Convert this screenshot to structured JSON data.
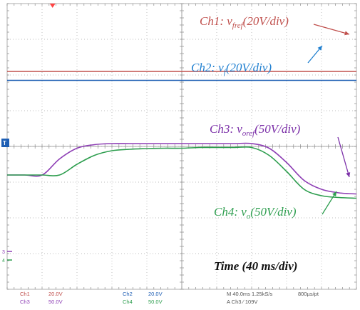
{
  "chart_data": {
    "type": "line",
    "screen": {
      "h_divisions": 10,
      "v_divisions": 8,
      "minor_ticks_per_div": 5,
      "grid": true,
      "grid_style": "dotted"
    },
    "x": [
      0,
      0.5,
      1,
      1.5,
      2,
      2.5,
      3,
      3.5,
      4,
      4.5,
      5,
      5.5,
      6,
      6.5,
      7,
      7.5,
      8,
      8.5,
      9,
      9.5,
      10
    ],
    "series": [
      {
        "channel": "Ch1",
        "color": "#c0504d",
        "values": [
          6.1,
          6.1,
          6.1,
          6.1,
          6.1,
          6.1,
          6.1,
          6.1,
          6.1,
          6.1,
          6.1,
          6.1,
          6.1,
          6.1,
          6.1,
          6.1,
          6.1,
          6.1,
          6.1,
          6.1,
          6.1
        ]
      },
      {
        "channel": "Ch2",
        "color": "#1f5fb4",
        "values": [
          5.85,
          5.85,
          5.85,
          5.85,
          5.85,
          5.85,
          5.85,
          5.85,
          5.85,
          5.85,
          5.85,
          5.85,
          5.85,
          5.85,
          5.85,
          5.85,
          5.85,
          5.85,
          5.85,
          5.85,
          5.85
        ]
      },
      {
        "channel": "Ch3",
        "color": "#8e3fb5",
        "values": [
          3.2,
          3.2,
          3.2,
          3.65,
          3.95,
          4.05,
          4.08,
          4.08,
          4.08,
          4.08,
          4.08,
          4.08,
          4.08,
          4.08,
          4.08,
          3.95,
          3.55,
          3.05,
          2.8,
          2.7,
          2.67
        ]
      },
      {
        "channel": "Ch4",
        "color": "#2e9e4f",
        "values": [
          3.2,
          3.2,
          3.2,
          3.2,
          3.5,
          3.75,
          3.88,
          3.92,
          3.94,
          3.95,
          3.95,
          3.97,
          3.97,
          3.97,
          3.97,
          3.75,
          3.3,
          2.8,
          2.62,
          2.57,
          2.55
        ]
      }
    ],
    "markers": {
      "trigger_color": "#ff4444",
      "level_marker": {
        "label": "T",
        "color": "#1f5fb4"
      },
      "left_markers": [
        {
          "label": "3",
          "color": "#8e3fb5"
        },
        {
          "label": "4",
          "color": "#2e9e4f"
        }
      ]
    },
    "annotations": [
      {
        "key": "ch1",
        "prefix": "Ch1: v",
        "sub": "fref",
        "suffix": "(20V/div)",
        "color": "#c0504d",
        "points_to": "Ch1"
      },
      {
        "key": "ch2",
        "prefix": "Ch2: v",
        "sub": "f",
        "suffix": "(20V/div)",
        "color": "#1f7fd0",
        "points_to": "Ch2"
      },
      {
        "key": "ch3",
        "prefix": "Ch3: v",
        "sub": "oref",
        "suffix": "(50V/div)",
        "color": "#7b2fa8",
        "points_to": "Ch3"
      },
      {
        "key": "ch4",
        "prefix": "Ch4: v",
        "sub": "o",
        "suffix": "(50V/div)",
        "color": "#2e9e4f",
        "points_to": "Ch4"
      }
    ],
    "time_label": "Time (40 ms/div)",
    "status_bar": {
      "ch1_name": "Ch1",
      "ch1_scale": "20.0V",
      "ch3_name": "Ch3",
      "ch3_scale": "50.0V",
      "ch2_name": "Ch2",
      "ch2_scale": "20.0V",
      "ch4_name": "Ch4",
      "ch4_scale": "50.0V",
      "timebase": "M 40.0ms  1.25kS/s",
      "record": "800µs/pt",
      "trigger": "A  Ch3  ∕  109V"
    }
  }
}
